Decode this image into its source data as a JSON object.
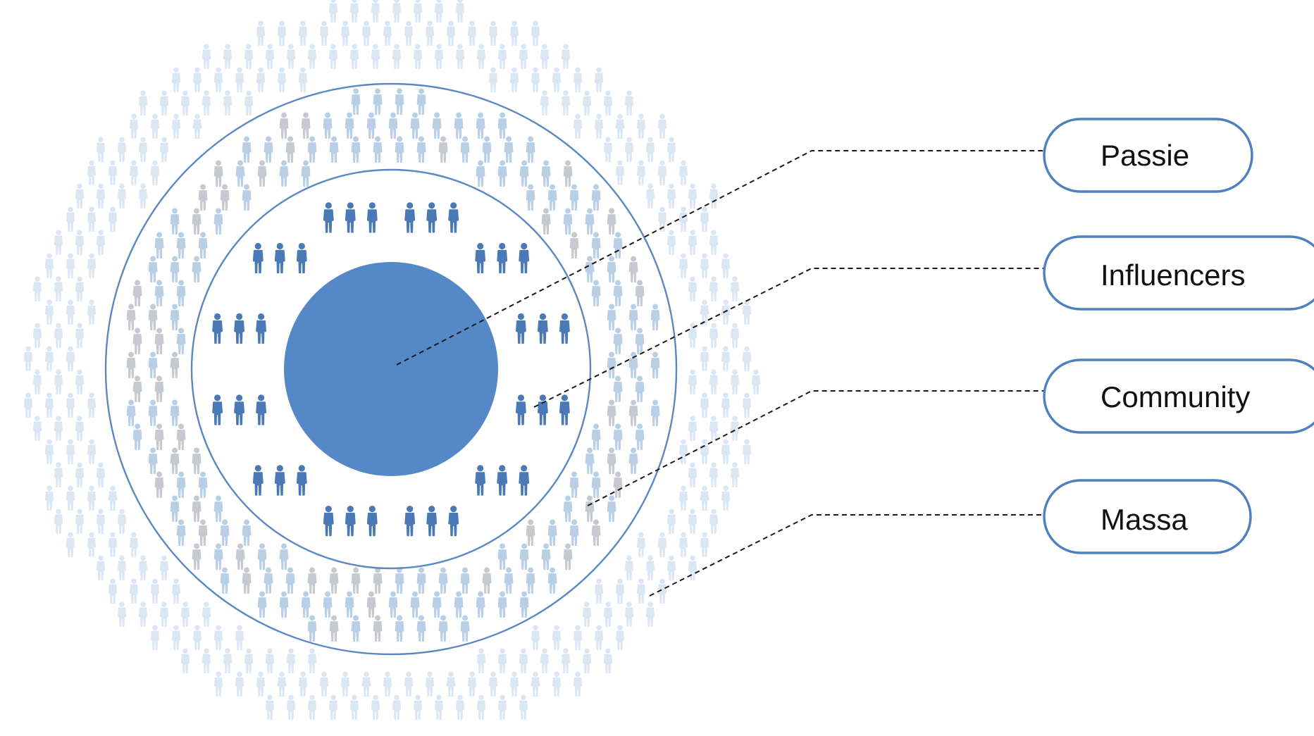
{
  "colors": {
    "core": "#5588c6",
    "ring": "#5b88c2",
    "influencer": "#4a79b6",
    "community": "#b9cfe6",
    "community_shade": "#c6c9ce",
    "massa": "#dbe6f3",
    "pill_border": "#4e7fbf",
    "leader": "#1a1a1a",
    "text": "#111111"
  },
  "icons": {
    "person": "person-icon"
  },
  "labels": [
    {
      "id": "passie",
      "text": "Passie"
    },
    {
      "id": "influencers",
      "text": "Influencers"
    },
    {
      "id": "community",
      "text": "Community"
    },
    {
      "id": "massa",
      "text": "Massa"
    }
  ]
}
